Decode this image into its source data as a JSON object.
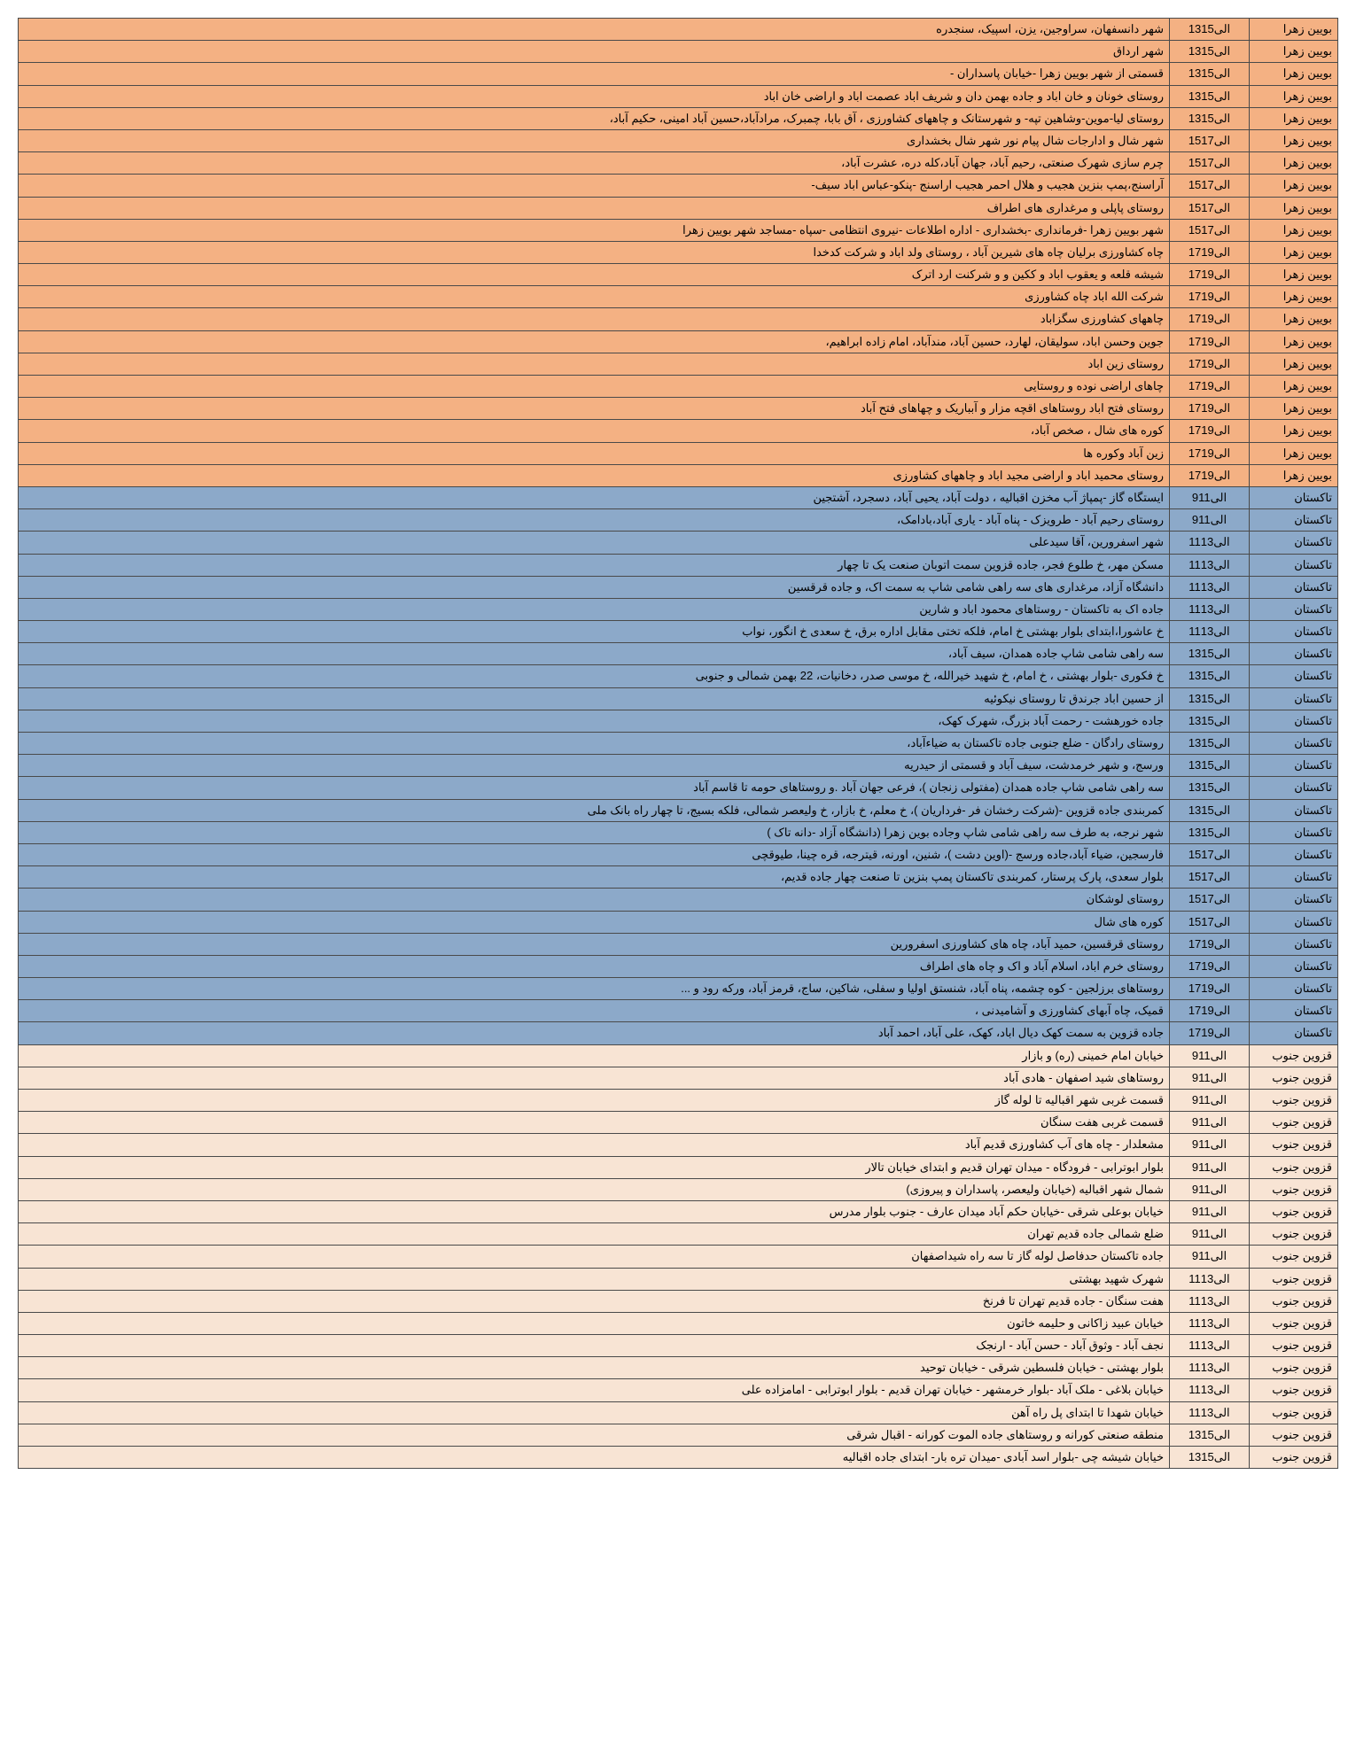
{
  "rows": [
    {
      "zone": "orange",
      "area": "بویین زهرا",
      "time": "13الی15",
      "desc": "شهر دانسفهان، سراوجین، یزن، اسپیک، سنجدره"
    },
    {
      "zone": "orange",
      "area": "بویین زهرا",
      "time": "13الی15",
      "desc": "شهر ارداق"
    },
    {
      "zone": "orange",
      "area": "بویین زهرا",
      "time": "13الی15",
      "desc": "قسمتی از شهر بویین زهرا -خیابان پاسداران -"
    },
    {
      "zone": "orange",
      "area": "بویین زهرا",
      "time": "13الی15",
      "desc": "روستای خونان و خان اباد و جاده بهمن دان و شریف اباد عصمت اباد و اراضی خان اباد"
    },
    {
      "zone": "orange",
      "area": "بویین زهرا",
      "time": "13الی15",
      "desc": "روستای لیا-موین-وشاهین تپه- و شهرستانک و چاههای کشاورزی ، آق بابا، چمبرک، مرادآباد،حسین آباد امینی، حکیم آباد،"
    },
    {
      "zone": "orange",
      "area": "بویین زهرا",
      "time": "15الی17",
      "desc": "شهر شال و ادارجات شال پیام نور شهر شال بخشداری"
    },
    {
      "zone": "orange",
      "area": "بویین زهرا",
      "time": "15الی17",
      "desc": "چرم سازی شهرک صنعتی، رحیم آباد، جهان آباد،کله دره، عشرت آباد،"
    },
    {
      "zone": "orange",
      "area": "بویین زهرا",
      "time": "15الی17",
      "desc": "آراسنج،پمپ بنزین هجیب و هلال احمر هجیب اراسنج -پنکو-عباس اباد سیف-"
    },
    {
      "zone": "orange",
      "area": "بویین زهرا",
      "time": "15الی17",
      "desc": "روستای پاپلی و مرغداری های اطراف"
    },
    {
      "zone": "orange",
      "area": "بویین زهرا",
      "time": "15الی17",
      "desc": "شهر بویین زهرا -فرمانداری -بخشداری - اداره اطلاعات -نیروی انتظامی -سپاه -مساجد شهر بویین زهرا"
    },
    {
      "zone": "orange",
      "area": "بویین زهرا",
      "time": "17الی19",
      "desc": "چاه کشاورزی برلیان چاه های شیرین آباد ،  روستای ولد اباد و شرکت کدخدا"
    },
    {
      "zone": "orange",
      "area": "بویین زهرا",
      "time": "17الی19",
      "desc": "شیشه قلعه و یعقوب اباد و ککین و و شرکنت ارد اترک"
    },
    {
      "zone": "orange",
      "area": "بویین زهرا",
      "time": "17الی19",
      "desc": "شرکت الله اباد چاه کشاورزی"
    },
    {
      "zone": "orange",
      "area": "بویین زهرا",
      "time": "17الی19",
      "desc": "چاههای کشاورزی سگزاباد"
    },
    {
      "zone": "orange",
      "area": "بویین زهرا",
      "time": "17الی19",
      "desc": "جوین وحسن اباد، سولیقان، لهارد، حسین آباد، مندآباد، امام زاده ابراهیم،"
    },
    {
      "zone": "orange",
      "area": "بویین زهرا",
      "time": "17الی19",
      "desc": "روستای زین اباد"
    },
    {
      "zone": "orange",
      "area": "بویین زهرا",
      "time": "17الی19",
      "desc": "چاهای اراضی نوده و روستایی"
    },
    {
      "zone": "orange",
      "area": "بویین زهرا",
      "time": "17الی19",
      "desc": "روستای فتح اباد روستاهای اقچه مزار و آبباریک و چهاهای فتح آباد"
    },
    {
      "zone": "orange",
      "area": "بویین زهرا",
      "time": "17الی19",
      "desc": "کوره های شال ، صخص آباد،"
    },
    {
      "zone": "orange",
      "area": "بویین زهرا",
      "time": "17الی19",
      "desc": "زین آباد وکوره ها"
    },
    {
      "zone": "orange",
      "area": "بویین زهرا",
      "time": "17الی19",
      "desc": "روستای محمید اباد و اراضی مجید اباد و چاههای کشاورزی"
    },
    {
      "zone": "blue",
      "area": "تاکستان",
      "time": "9الی11",
      "desc": "ایستگاه گاز -پمپاژ آب مخزن اقبالیه ، دولت آباد، یحیی آباد، دسجرد، آشتجین"
    },
    {
      "zone": "blue",
      "area": "تاکستان",
      "time": "9الی11",
      "desc": "روستای رحیم آباد - طرویزک - پناه آباد - یاری آباد،بادامک،"
    },
    {
      "zone": "blue",
      "area": "تاکستان",
      "time": "11الی13",
      "desc": "شهر اسفرورین، آقا سیدعلی"
    },
    {
      "zone": "blue",
      "area": "تاکستان",
      "time": "11الی13",
      "desc": "مسکن مهر، خ طلوع فجر، جاده قزوین سمت اتوبان صنعت یک تا چهار"
    },
    {
      "zone": "blue",
      "area": "تاکستان",
      "time": "11الی13",
      "desc": "دانشگاه آزاد، مرغداری های سه راهی شامی شاپ به سمت اک، و جاده قرقسین"
    },
    {
      "zone": "blue",
      "area": "تاکستان",
      "time": "11الی13",
      "desc": "جاده اک به تاکستان - روستاهای محمود اباد و شارین"
    },
    {
      "zone": "blue",
      "area": "تاکستان",
      "time": "11الی13",
      "desc": "خ عاشورا،ابتدای بلوار بهشتی خ امام، فلکه تختی مقابل اداره برق،  خ سعدی خ انگور، نواب"
    },
    {
      "zone": "blue",
      "area": "تاکستان",
      "time": "13الی15",
      "desc": "سه راهی شامی شاپ جاده همدان، سیف آباد،"
    },
    {
      "zone": "blue",
      "area": "تاکستان",
      "time": "13الی15",
      "desc": "خ فکوری -بلوار بهشتی ، خ امام، خ شهید خیرالله، خ موسی صدر، دخانیات، 22 بهمن شمالی و جنوبی"
    },
    {
      "zone": "blue",
      "area": "تاکستان",
      "time": "13الی15",
      "desc": "از حسین اباد جرندق تا روستای نیکوئیه"
    },
    {
      "zone": "blue",
      "area": "تاکستان",
      "time": "13الی15",
      "desc": "جاده خورهشت - رحمت آباد بزرگ، شهرک کهک،"
    },
    {
      "zone": "blue",
      "area": "تاکستان",
      "time": "13الی15",
      "desc": "روستای رادگان - ضلع جنوبی جاده تاکستان به ضیاءآباد،"
    },
    {
      "zone": "blue",
      "area": "تاکستان",
      "time": "13الی15",
      "desc": "ورسج، و شهر خرمدشت، سیف آباد و قسمتی از حیدریه"
    },
    {
      "zone": "blue",
      "area": "تاکستان",
      "time": "13الی15",
      "desc": "سه راهی شامی شاپ جاده همدان  (مفتولی زنجان )، فرعی جهان آباد .و روستاهای حومه تا قاسم آباد"
    },
    {
      "zone": "blue",
      "area": "تاکستان",
      "time": "13الی15",
      "desc": "کمربندی جاده قزوین -(شرکت رخشان فر -فرداریان )، خ معلم، خ بازار، خ ولیعصر شمالی، فلکه بسیج، تا چهار راه بانک ملی"
    },
    {
      "zone": "blue",
      "area": "تاکستان",
      "time": "13الی15",
      "desc": "شهر نرجه، به طرف سه راهی شامی شاپ وجاده بوین زهرا (دانشگاه آزاد -دانه تاک )"
    },
    {
      "zone": "blue",
      "area": "تاکستان",
      "time": "15الی17",
      "desc": "فارسجین، ضیاء آباد،جاده ورسج -(اوین دشت )، شنین، اورنه، قیترجه، قره چینا، طیوقچی"
    },
    {
      "zone": "blue",
      "area": "تاکستان",
      "time": "15الی17",
      "desc": "بلوار سعدی، پارک پرستار، کمربندی تاکستان  پمپ بنزین تا صنعت چهار جاده قدیم،"
    },
    {
      "zone": "blue",
      "area": "تاکستان",
      "time": "15الی17",
      "desc": "روستای لوشکان"
    },
    {
      "zone": "blue",
      "area": "تاکستان",
      "time": "15الی17",
      "desc": "کوره های شال"
    },
    {
      "zone": "blue",
      "area": "تاکستان",
      "time": "17الی19",
      "desc": "روستای قرقسین، حمید آباد، چاه های کشاورزی اسفرورین"
    },
    {
      "zone": "blue",
      "area": "تاکستان",
      "time": "17الی19",
      "desc": "روستای خرم اباد، اسلام آباد و اک و چاه های اطراف"
    },
    {
      "zone": "blue",
      "area": "تاکستان",
      "time": "17الی19",
      "desc": "روستاهای برزلجین - کوه چشمه، پناه آباد، شنستق اولیا و سفلی، شاکین، ساج، قرمز آباد، ورکه رود و ..."
    },
    {
      "zone": "blue",
      "area": "تاکستان",
      "time": "17الی19",
      "desc": "قمیک، چاه آبهای کشاورزی و آشامیدنی ،"
    },
    {
      "zone": "blue",
      "area": "تاکستان",
      "time": "17الی19",
      "desc": "جاده قزوین به سمت کهک دیال اباد، کهک، علی آباد، احمد آباد"
    },
    {
      "zone": "beige",
      "area": "قزوین جنوب",
      "time": "9الی11",
      "desc": "خیابان امام خمینی (ره) و بازار"
    },
    {
      "zone": "beige",
      "area": "قزوین جنوب",
      "time": "9الی11",
      "desc": "روستاهای شید اصفهان - هادی آباد"
    },
    {
      "zone": "beige",
      "area": "قزوین جنوب",
      "time": "9الی11",
      "desc": "قسمت غربی شهر اقبالیه تا لوله گاز"
    },
    {
      "zone": "beige",
      "area": "قزوین جنوب",
      "time": "9الی11",
      "desc": "قسمت غربی هفت سنگان"
    },
    {
      "zone": "beige",
      "area": "قزوین جنوب",
      "time": "9الی11",
      "desc": "مشعلدار - چاه های آب کشاورزی قدیم آباد"
    },
    {
      "zone": "beige",
      "area": "قزوین جنوب",
      "time": "9الی11",
      "desc": "بلوار ابوترابی - فرودگاه - میدان تهران قدیم و ابتدای خیابان تالار"
    },
    {
      "zone": "beige",
      "area": "قزوین جنوب",
      "time": "9الی11",
      "desc": "شمال شهر اقبالیه (خیابان ولیعصر، پاسداران و پیروزی)"
    },
    {
      "zone": "beige",
      "area": "قزوین جنوب",
      "time": "9الی11",
      "desc": "خیابان بوعلی شرقی -خیابان حکم آباد میدان عارف - جنوب بلوار مدرس"
    },
    {
      "zone": "beige",
      "area": "قزوین جنوب",
      "time": "9الی11",
      "desc": "ضلع شمالی جاده قدیم تهران"
    },
    {
      "zone": "beige",
      "area": "قزوین جنوب",
      "time": "9الی11",
      "desc": "جاده تاکستان حدفاصل لوله گاز تا سه راه شیداصفهان"
    },
    {
      "zone": "beige",
      "area": "قزوین جنوب",
      "time": "11الی13",
      "desc": "شهرک شهید بهشتی"
    },
    {
      "zone": "beige",
      "area": "قزوین جنوب",
      "time": "11الی13",
      "desc": "هفت سنگان - جاده قدیم تهران تا فرنخ"
    },
    {
      "zone": "beige",
      "area": "قزوین جنوب",
      "time": "11الی13",
      "desc": "خیابان عبید زاکانی و حلیمه خاتون"
    },
    {
      "zone": "beige",
      "area": "قزوین جنوب",
      "time": "11الی13",
      "desc": "نجف آباد - وثوق آباد - حسن آباد - ارنجک"
    },
    {
      "zone": "beige",
      "area": "قزوین جنوب",
      "time": "11الی13",
      "desc": "بلوار بهشتی - خیابان فلسطین شرقی - خیابان توحید"
    },
    {
      "zone": "beige",
      "area": "قزوین جنوب",
      "time": "11الی13",
      "desc": "خیابان بلاغی - ملک آباد -بلوار خرمشهر - خیابان تهران قدیم - بلوار ابوترابی - امامزاده علی"
    },
    {
      "zone": "beige",
      "area": "قزوین جنوب",
      "time": "11الی13",
      "desc": "خیابان شهدا تا ابتدای پل راه آهن"
    },
    {
      "zone": "beige",
      "area": "قزوین جنوب",
      "time": "13الی15",
      "desc": "منطقه صنعتی کورانه و روستاهای جاده الموت کورانه - اقبال شرقی"
    },
    {
      "zone": "beige",
      "area": "قزوین جنوب",
      "time": "13الی15",
      "desc": "خیابان شیشه چی -بلوار اسد آبادی -میدان تره بار-  ابتدای جاده اقبالیه"
    }
  ]
}
